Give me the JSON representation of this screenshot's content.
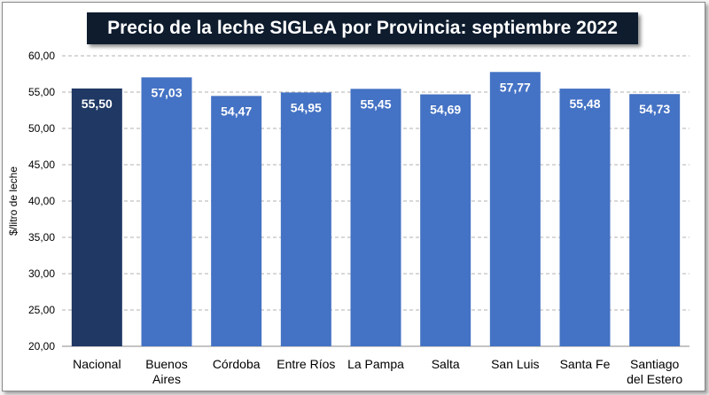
{
  "chart_data": {
    "type": "bar",
    "title": "Precio de la leche SIGLeA por Provincia: septiembre 2022",
    "ylabel": "$/litro de leche",
    "xlabel": "",
    "ylim": [
      20,
      60
    ],
    "yticks": [
      "20,00",
      "25,00",
      "30,00",
      "35,00",
      "40,00",
      "45,00",
      "50,00",
      "55,00",
      "60,00"
    ],
    "grid": true,
    "categories": [
      [
        "Nacional"
      ],
      [
        "Buenos",
        "Aires"
      ],
      [
        "Córdoba"
      ],
      [
        "Entre Ríos"
      ],
      [
        "La Pampa"
      ],
      [
        "Salta"
      ],
      [
        "San Luis"
      ],
      [
        "Santa Fe"
      ],
      [
        "Santiago",
        "del Estero"
      ]
    ],
    "values": [
      55.5,
      57.03,
      54.47,
      54.95,
      55.45,
      54.69,
      57.77,
      55.48,
      54.73
    ],
    "value_labels": [
      "55,50",
      "57,03",
      "54,47",
      "54,95",
      "55,45",
      "54,69",
      "57,77",
      "55,48",
      "54,73"
    ],
    "colors": {
      "highlight": "#1f3864",
      "bar": "#4472c4",
      "title_bg": "#0e1c2e",
      "grid": "#b0b0b0"
    },
    "highlight_index": 0
  }
}
